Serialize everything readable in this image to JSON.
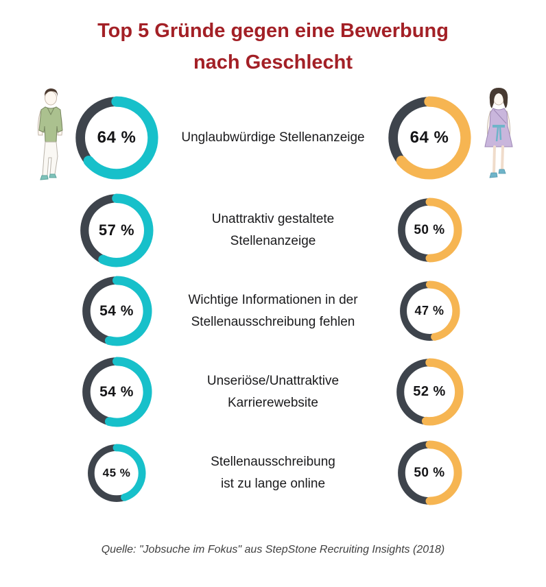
{
  "page": {
    "title_line1": "Top 5 Gründe gegen eine Bewerbung",
    "title_line2": "nach Geschlecht",
    "title_color": "#A32026",
    "source": "Quelle: \"Jobsuche im Fokus\" aus StepStone Recruiting Insights (2018)"
  },
  "colors": {
    "male": "#17C0CA",
    "female": "#F6B552",
    "track": "#3E444C",
    "title_red": "#A32026"
  },
  "icons": {
    "left": "man-illustration",
    "right": "woman-illustration"
  },
  "chart_data": {
    "type": "donut-pair",
    "title": "Top 5 Gründe gegen eine Bewerbung nach Geschlecht",
    "legend_position": "icons-top (man left, woman right)",
    "series": [
      {
        "name": "male",
        "color": "#17C0CA"
      },
      {
        "name": "female",
        "color": "#F6B552"
      }
    ],
    "rows": [
      {
        "label": "Unglaubwürdige Stellenanzeige",
        "lines": [
          "Unglaubwürdige Stellenanzeige"
        ],
        "male": 64,
        "female": 64,
        "male_display": "64 %",
        "female_display": "64 %"
      },
      {
        "label": "Unattraktiv gestaltete Stellenanzeige",
        "lines": [
          "Unattraktiv gestaltete",
          "Stellenanzeige"
        ],
        "male": 57,
        "female": 50,
        "male_display": "57 %",
        "female_display": "50 %"
      },
      {
        "label": "Wichtige Informationen in der Stellenausschreibung fehlen",
        "lines": [
          "Wichtige Informationen in der",
          "Stellenausschreibung fehlen"
        ],
        "male": 54,
        "female": 47,
        "male_display": "54 %",
        "female_display": "47 %"
      },
      {
        "label": "Unseriöse/Unattraktive Karrierewebsite",
        "lines": [
          "Unseriöse/Unattraktive",
          "Karrierewebsite"
        ],
        "male": 54,
        "female": 52,
        "male_display": "54 %",
        "female_display": "52 %"
      },
      {
        "label": "Stellenausschreibung ist zu lange online",
        "lines": [
          "Stellenausschreibung",
          "ist zu lange online"
        ],
        "male": 45,
        "female": 50,
        "male_display": "45 %",
        "female_display": "50 %"
      }
    ]
  }
}
